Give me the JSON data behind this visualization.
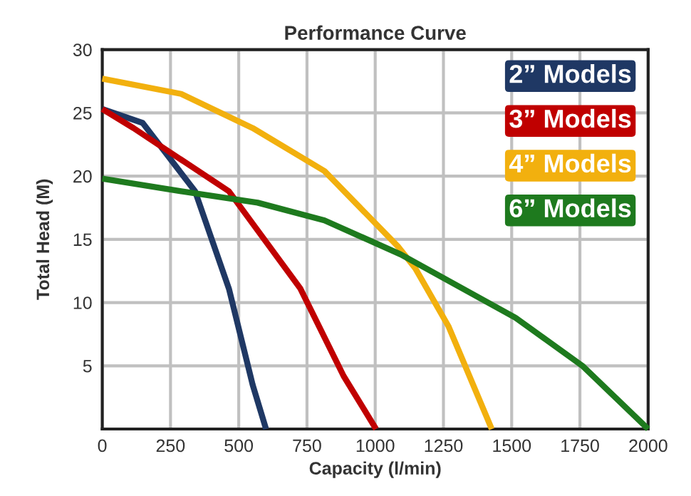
{
  "chart_data": {
    "type": "line",
    "title": "Performance Curve",
    "xlabel": "Capacity (l/min)",
    "ylabel": "Total Head (M)",
    "xlim": [
      0,
      2000
    ],
    "xticks": [
      0,
      250,
      500,
      750,
      1000,
      1250,
      1500,
      1750,
      2000
    ],
    "ylim": [
      0,
      30
    ],
    "yticks": [
      5,
      10,
      15,
      20,
      25,
      30
    ],
    "grid": true,
    "legend": "top right",
    "marker": "none",
    "line_style": "solid",
    "series": [
      {
        "name": "2” Models",
        "color": "#1f3864",
        "x": [
          0,
          148,
          340,
          464,
          551,
          600
        ],
        "values": [
          25.3,
          24.2,
          18.8,
          11.1,
          3.5,
          0
        ]
      },
      {
        "name": "3” Models",
        "color": "#c00000",
        "x": [
          0,
          114,
          464,
          726,
          884,
          1003
        ],
        "values": [
          25.3,
          23.8,
          18.8,
          11.1,
          4.2,
          0
        ]
      },
      {
        "name": "4” Models",
        "color": "#f2b00e",
        "x": [
          0,
          289,
          551,
          814,
          1085,
          1147,
          1269,
          1427
        ],
        "values": [
          27.7,
          26.5,
          23.8,
          20.4,
          14.4,
          12.7,
          8.1,
          0
        ]
      },
      {
        "name": "6” Models",
        "color": "#1e7a1e",
        "x": [
          0,
          289,
          569,
          814,
          1094,
          1514,
          1759,
          2000
        ],
        "values": [
          19.8,
          18.8,
          17.9,
          16.5,
          13.8,
          8.8,
          5.0,
          0
        ]
      }
    ]
  }
}
